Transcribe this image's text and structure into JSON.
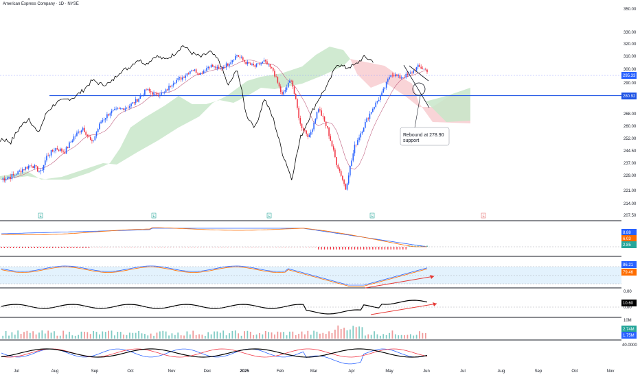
{
  "header": {
    "title": "American Express Company · 1D · NYSE"
  },
  "annotation": {
    "line1": "Rebound at 278.90",
    "line2": "support"
  },
  "colors": {
    "up": "#2962ff",
    "down": "#f23645",
    "cloud_bull": "#c8e6c9",
    "cloud_bear": "#f8cdd0",
    "support": "#1e53e5",
    "price_line": "#000000",
    "baseline": "#c06080",
    "macd": "#2962ff",
    "signal": "#ff6d00",
    "stoch_k": "#2962ff",
    "stoch_d": "#ff6d00",
    "osc": "#000000",
    "arrow": "#e53935"
  },
  "chart_data": [
    {
      "type": "candlestick",
      "panel": "price",
      "title": "American Express Company · 1D · NYSE",
      "y_ticks": [
        "350.00",
        "330.00",
        "320.00",
        "310.00",
        "300.00",
        "290.00",
        "268.00",
        "260.00",
        "252.00",
        "244.50",
        "237.00",
        "229.00",
        "221.00",
        "214.00",
        "207.50"
      ],
      "ylim": [
        207.5,
        350
      ],
      "x_ticks": [
        "Jul",
        "Aug",
        "Sep",
        "Oct",
        "Nov",
        "Dec",
        "2025",
        "Feb",
        "Mar",
        "Apr",
        "May",
        "Jun",
        "Jul",
        "Aug",
        "Sep",
        "Oct",
        "Nov"
      ],
      "price_label": "295.33",
      "support_label": "280.92",
      "support_level": 280.92,
      "price_anchors": [
        [
          0,
          227
        ],
        [
          8,
          229
        ],
        [
          14,
          233
        ],
        [
          20,
          236
        ],
        [
          26,
          231
        ],
        [
          30,
          241
        ],
        [
          36,
          246
        ],
        [
          42,
          244
        ],
        [
          48,
          253
        ],
        [
          54,
          259
        ],
        [
          60,
          249
        ],
        [
          66,
          263
        ],
        [
          72,
          269
        ],
        [
          78,
          271
        ],
        [
          84,
          273
        ],
        [
          90,
          278
        ],
        [
          96,
          285
        ],
        [
          102,
          282
        ],
        [
          108,
          283
        ],
        [
          114,
          291
        ],
        [
          120,
          294
        ],
        [
          126,
          300
        ],
        [
          132,
          297
        ],
        [
          138,
          303
        ],
        [
          144,
          300
        ],
        [
          150,
          304
        ],
        [
          156,
          311
        ],
        [
          162,
          305
        ],
        [
          168,
          302
        ],
        [
          174,
          306
        ],
        [
          180,
          299
        ],
        [
          186,
          281
        ],
        [
          192,
          293
        ],
        [
          198,
          261
        ],
        [
          204,
          253
        ],
        [
          210,
          272
        ],
        [
          216,
          258
        ],
        [
          222,
          237
        ],
        [
          228,
          222
        ],
        [
          234,
          247
        ],
        [
          240,
          260
        ],
        [
          246,
          272
        ],
        [
          252,
          282
        ],
        [
          258,
          297
        ],
        [
          264,
          294
        ],
        [
          270,
          296
        ],
        [
          276,
          302
        ],
        [
          282,
          299
        ]
      ],
      "earnings_markers": [
        "E",
        "E",
        "E",
        "E",
        "E"
      ]
    },
    {
      "type": "line",
      "panel": "macd",
      "labels": [
        "8.88",
        "6.03",
        "2.85"
      ],
      "series": []
    },
    {
      "type": "line",
      "panel": "stochastic",
      "labels": [
        "86.21",
        "79.46"
      ],
      "y_ticks": [
        "0.00"
      ]
    },
    {
      "type": "line",
      "panel": "oscillator",
      "labels": [
        "10.60"
      ],
      "y_ticks": [
        "0.00"
      ]
    },
    {
      "type": "bar",
      "panel": "volume",
      "labels": [
        "2.74M",
        "1.75M"
      ],
      "y_ticks": [
        "10M"
      ]
    },
    {
      "type": "line",
      "panel": "bottom",
      "y_ticks": [
        "40.0000"
      ]
    }
  ]
}
